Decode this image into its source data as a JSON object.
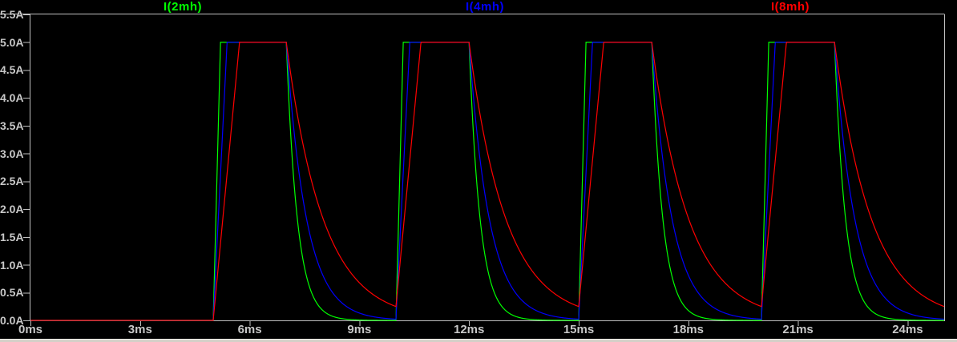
{
  "window": {
    "background_color": "#000000",
    "bottom_edge_color": "#d4d0c8"
  },
  "axes_style": {
    "line_color": "#c0c0c0",
    "text_color": "#c8c8c8"
  },
  "legend": {
    "items": [
      {
        "label": "I(2mh)",
        "color": "#00ff00"
      },
      {
        "label": "I(4mh)",
        "color": "#0000ff"
      },
      {
        "label": "I(8mh)",
        "color": "#ff0000"
      }
    ]
  },
  "chart_data": {
    "type": "line",
    "title": "",
    "xlabel": "",
    "ylabel": "",
    "legend_position": "top",
    "grid": false,
    "x_axis": {
      "unit": "ms",
      "min_ms": 0,
      "max_ms": 25,
      "tick_step_ms": 3,
      "tick_labels": [
        "0ms",
        "3ms",
        "6ms",
        "9ms",
        "12ms",
        "15ms",
        "18ms",
        "21ms",
        "24ms"
      ]
    },
    "y_axis": {
      "unit": "A",
      "min_A": 0,
      "max_A": 5.5,
      "tick_step_A": 0.5,
      "tick_labels": [
        "0.0A",
        "0.5A",
        "1.0A",
        "1.5A",
        "2.0A",
        "2.5A",
        "3.0A",
        "3.5A",
        "4.0A",
        "4.5A",
        "5.0A",
        "5.5A"
      ]
    },
    "waveform": {
      "description": "periodic trapezoid/exponential inductor current pulses",
      "pulse_start_times_ms": [
        5,
        10,
        15,
        20
      ],
      "pulse_end_times_ms": [
        7,
        12,
        17,
        22
      ],
      "peak_current_A": 5.0,
      "initial_current_A": 0,
      "period_ms": 5,
      "sim_end_ms": 25
    },
    "series": [
      {
        "name": "I(2mh)",
        "color": "#00ff00",
        "rise_time_ms": 0.2,
        "decay_tau_ms": 0.3,
        "current_at_next_pulse_A": 0.0
      },
      {
        "name": "I(4mh)",
        "color": "#0000ff",
        "rise_time_ms": 0.38,
        "decay_tau_ms": 0.55,
        "current_at_next_pulse_A": 0.02
      },
      {
        "name": "I(8mh)",
        "color": "#ff0000",
        "rise_time_ms": 0.72,
        "decay_tau_ms": 1.0,
        "current_at_next_pulse_A": 0.25
      }
    ]
  }
}
